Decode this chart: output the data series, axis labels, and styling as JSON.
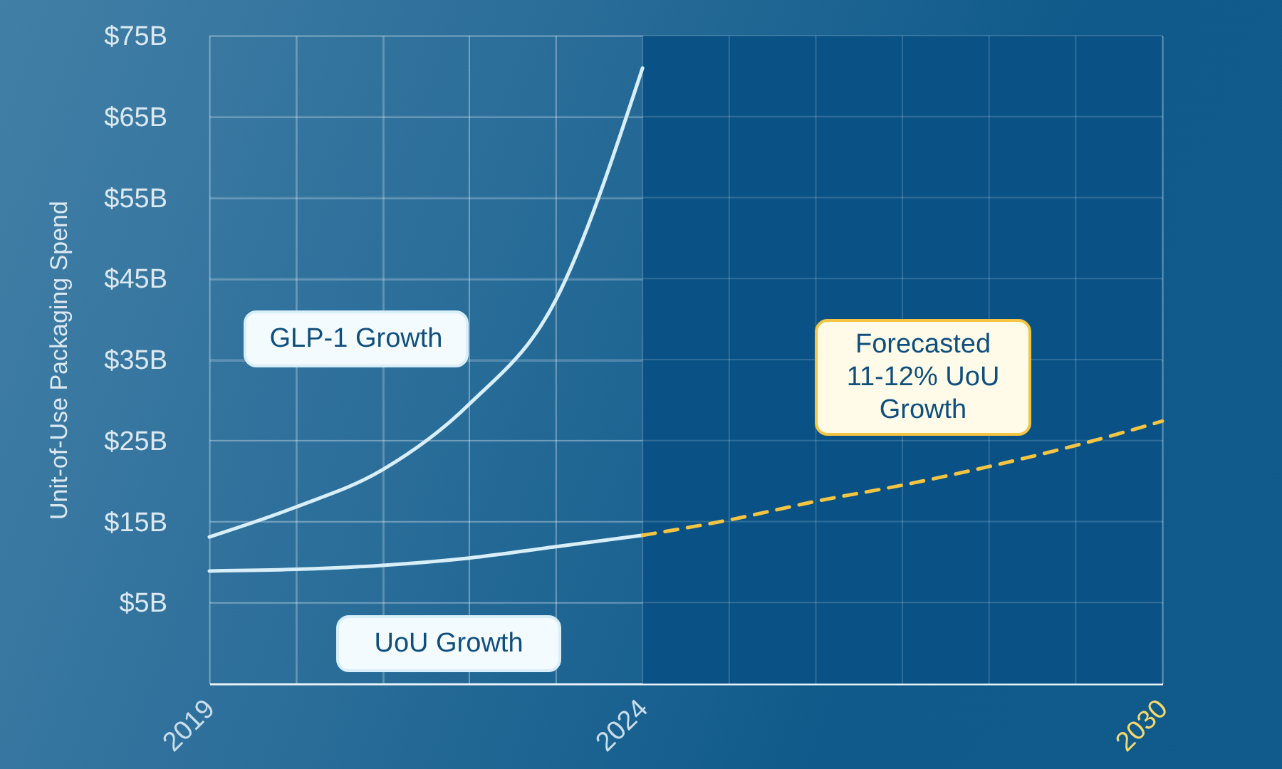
{
  "chart_data": {
    "type": "line",
    "ylabel": "Unit-of-Use Packaging Spend",
    "xlim": [
      2019,
      2030
    ],
    "xticks": [
      2019,
      {
        "value": 2020,
        "label": null
      },
      {
        "value": 2021,
        "label": null
      },
      {
        "value": 2022,
        "label": null
      },
      {
        "value": 2023,
        "label": null
      },
      2024,
      {
        "value": 2025,
        "label": null
      },
      {
        "value": 2026,
        "label": null
      },
      {
        "value": 2027,
        "label": null
      },
      {
        "value": 2028,
        "label": null
      },
      {
        "value": 2029,
        "label": null
      },
      2030
    ],
    "ylim": [
      -5,
      75
    ],
    "yticks": [
      {
        "value": 5,
        "label": "$5B"
      },
      {
        "value": 15,
        "label": "$15B"
      },
      {
        "value": 25,
        "label": "$25B"
      },
      {
        "value": 35,
        "label": "$35B"
      },
      {
        "value": 45,
        "label": "$45B"
      },
      {
        "value": 55,
        "label": "$55B"
      },
      {
        "value": 65,
        "label": "$65B"
      },
      {
        "value": 75,
        "label": "$75B"
      }
    ],
    "grid": true,
    "bands": [
      {
        "axis": "x",
        "from": 2024,
        "to": 2030,
        "color": "#0a5285"
      }
    ],
    "series": [
      {
        "name": "GLP-1 Growth",
        "color": "#d8eef8",
        "line_style": "solid",
        "x": [
          2019,
          2020,
          2021,
          2022,
          2023,
          2024
        ],
        "values": [
          13.1,
          16.8,
          21.4,
          29.5,
          42.4,
          71
        ]
      },
      {
        "name": "UoU Growth",
        "color": "#d8eef8",
        "line_style": "solid",
        "x": [
          2019,
          2020,
          2021,
          2022,
          2023,
          2024
        ],
        "values": [
          8.9,
          9.1,
          9.6,
          10.5,
          11.9,
          13.3
        ]
      },
      {
        "name": "Forecasted\n11-12% UoU\nGrowth",
        "color": "#f5c542",
        "line_style": "dashed",
        "x": [
          2024,
          2025,
          2026,
          2027,
          2028,
          2029,
          2030
        ],
        "values": [
          13.3,
          15.2,
          17.5,
          19.5,
          21.8,
          24.4,
          27.4
        ]
      }
    ]
  }
}
